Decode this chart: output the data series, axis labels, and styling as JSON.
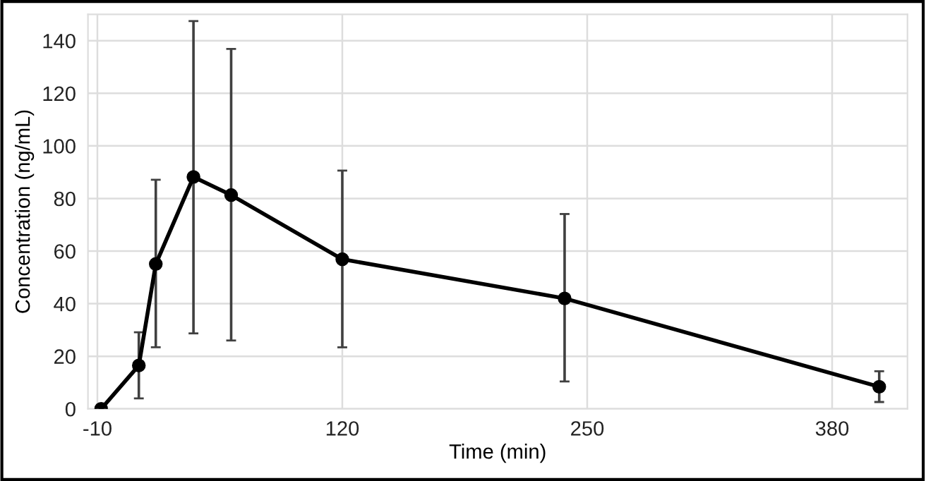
{
  "chart_data": {
    "type": "line",
    "xlabel": "Time (min)",
    "ylabel": "Concentration (ng/mL)",
    "x": [
      -8,
      12,
      21,
      41,
      61,
      120,
      238,
      405
    ],
    "series": [
      {
        "color": "#000000",
        "values": [
          0,
          16.5,
          55.1,
          88.2,
          81.3,
          56.9,
          42.0,
          8.4
        ],
        "errors": [
          null,
          [
            4.0,
            29.1
          ],
          [
            23.4,
            87.1
          ],
          [
            28.7,
            147.5
          ],
          [
            26.0,
            136.9
          ],
          [
            23.4,
            90.6
          ],
          [
            10.4,
            74.1
          ],
          [
            2.6,
            14.3
          ]
        ]
      }
    ],
    "xlim": [
      -15,
      420
    ],
    "xticks": [
      -10,
      120,
      250,
      380
    ],
    "ylim": [
      0,
      150
    ],
    "yticks": [
      0,
      20,
      40,
      60,
      80,
      100,
      120,
      140
    ],
    "grid": true,
    "marker": "circle",
    "line_style": "solid"
  }
}
